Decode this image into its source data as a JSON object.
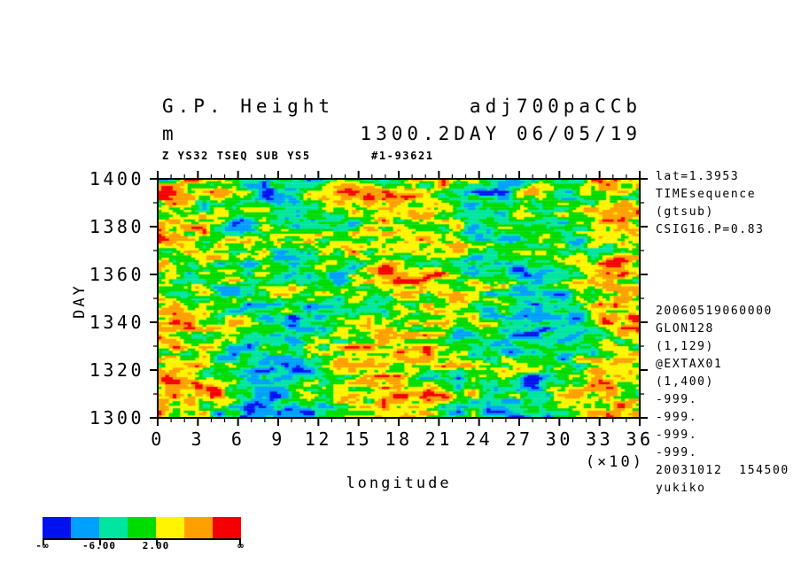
{
  "header": {
    "title_left": "G.P. Height",
    "title_right": "adj700paCCb",
    "units": "m",
    "subtitle_right": "1300.2DAY 06/05/19",
    "process_info": "Z YS32 TSEQ SUB YS5",
    "run_id": "#1-93621"
  },
  "annotations": {
    "right_top": [
      "lat=1.3953",
      "TIMEsequence",
      "(gtsub)",
      "CSIG16.P=0.83"
    ],
    "right_bottom": [
      "20060519060000",
      "GLON128",
      "(1,129)",
      "@EXTAX01",
      "(1,400)",
      "-999.",
      "-999.",
      "-999.",
      "-999.",
      "20031012  154500",
      "yukiko"
    ]
  },
  "chart_data": {
    "type": "heatmap",
    "title": "G.P. Height adj700paCCb 1300.2DAY 06/05/19",
    "xlabel": "longitude",
    "x_scale_note": "(×10)",
    "ylabel": "DAY",
    "x": {
      "min": 0,
      "max": 36,
      "major_tick_step": 3,
      "minor_tick_step": 1,
      "tick_labels": [
        "0",
        "3",
        "6",
        "9",
        "12",
        "15",
        "18",
        "21",
        "24",
        "27",
        "30",
        "33",
        "36"
      ]
    },
    "y": {
      "min": 1300,
      "max": 1400,
      "major_tick_step": 20,
      "minor_tick_step": 10,
      "tick_labels": [
        "1400",
        "1380",
        "1360",
        "1340",
        "1320",
        "1300"
      ]
    },
    "grid": {
      "nx": 129,
      "ny": 100
    },
    "levels": [
      -10,
      -6,
      -2,
      2,
      6,
      10
    ],
    "palette": [
      "#0011f0",
      "#00a0ff",
      "#00e6a0",
      "#00dc00",
      "#fff500",
      "#ffa000",
      "#f50000"
    ],
    "colorbar": {
      "tick_labels": [
        "-∞",
        "-6.00",
        "2.00",
        "∞"
      ],
      "tick_boundary_index": [
        0,
        2,
        4,
        7
      ],
      "position": "bottom-left"
    },
    "field_model": {
      "description": "zonally banded GP-height anomalies vs time: warm (yellow/orange/red) bands near longitude 0, 180-210 and 350-360 (x10 deg); cool (cyan/blue) bands near 80-130 and 260-310; noisy streaks elongated in longitude",
      "seed": 7,
      "mean_bias": 0.8,
      "zonal_wave": {
        "amplitude": 4.2,
        "wavelength_x_units": 18,
        "warm_centers_x": [
          0,
          18,
          36
        ],
        "cool_centers_x": [
          9,
          27
        ]
      },
      "noise": {
        "scale": 6.5,
        "octaves": [
          {
            "fx": 4,
            "fy": 2.5,
            "amp": 1.0
          },
          {
            "fx": 10,
            "fy": 6,
            "amp": 0.8
          },
          {
            "fx": 2,
            "fy": 1.3,
            "amp": 0.55
          }
        ]
      }
    },
    "frame_ticks": "all-sides-outward",
    "grid_lines": "off"
  }
}
